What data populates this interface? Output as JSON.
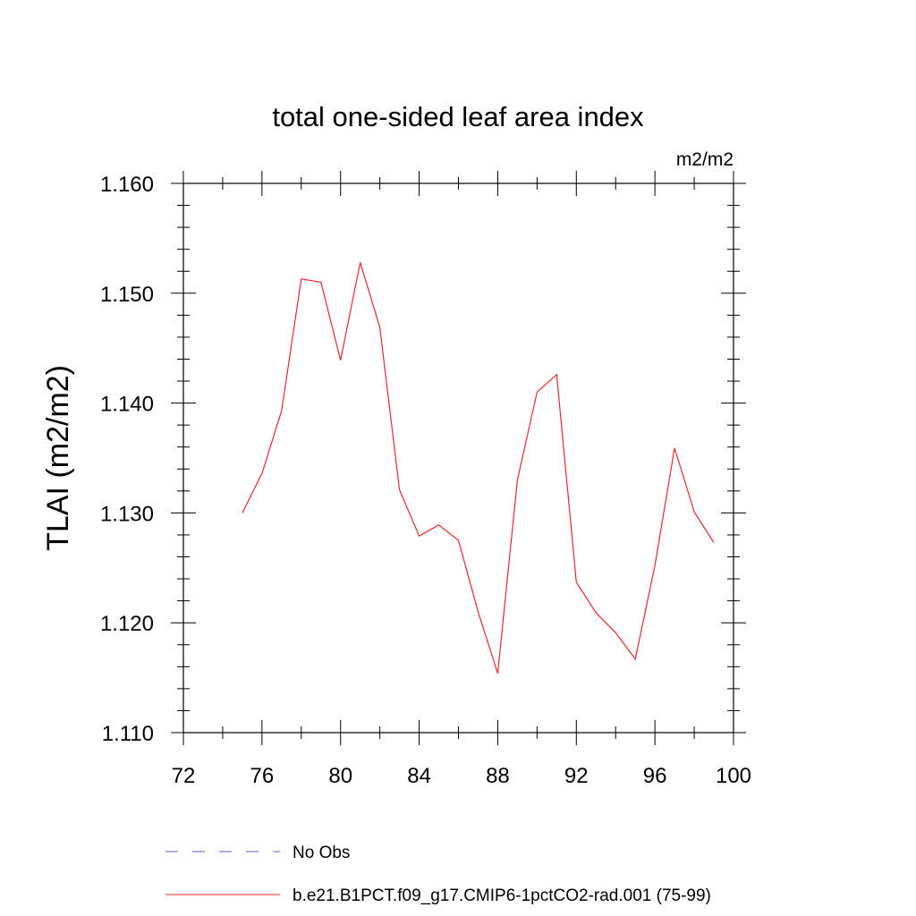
{
  "chart_data": {
    "type": "line",
    "title": "total one-sided leaf area index",
    "units_label": "m2/m2",
    "ylabel": "TLAI  (m2/m2)",
    "xlabel": "",
    "xlim": [
      72,
      100
    ],
    "ylim": [
      1.11,
      1.16
    ],
    "x_ticks": [
      72,
      76,
      80,
      84,
      88,
      92,
      96,
      100
    ],
    "y_ticks": [
      1.11,
      1.12,
      1.13,
      1.14,
      1.15,
      1.16
    ],
    "y_tick_labels": [
      "1.110",
      "1.120",
      "1.130",
      "1.140",
      "1.150",
      "1.160"
    ],
    "grid": false,
    "legend_placement": "bottom",
    "series": [
      {
        "name": "No Obs",
        "color": "#6a5acd",
        "dash": "dashed",
        "x": [],
        "y": []
      },
      {
        "name": "b.e21.B1PCT.f09_g17.CMIP6-1pctCO2-rad.001 (75-99)",
        "color": "#e8282b",
        "dash": "solid",
        "x": [
          75,
          76,
          77,
          78,
          79,
          80,
          81,
          82,
          83,
          84,
          85,
          86,
          87,
          88,
          89,
          90,
          91,
          92,
          93,
          94,
          95,
          96,
          97,
          98,
          99
        ],
        "y": [
          1.13,
          1.1336,
          1.1393,
          1.1513,
          1.151,
          1.1439,
          1.1528,
          1.1469,
          1.1321,
          1.1279,
          1.1289,
          1.1275,
          1.121,
          1.1154,
          1.133,
          1.141,
          1.1426,
          1.1237,
          1.1209,
          1.1191,
          1.1167,
          1.1252,
          1.1359,
          1.1301,
          1.1273
        ]
      }
    ]
  }
}
